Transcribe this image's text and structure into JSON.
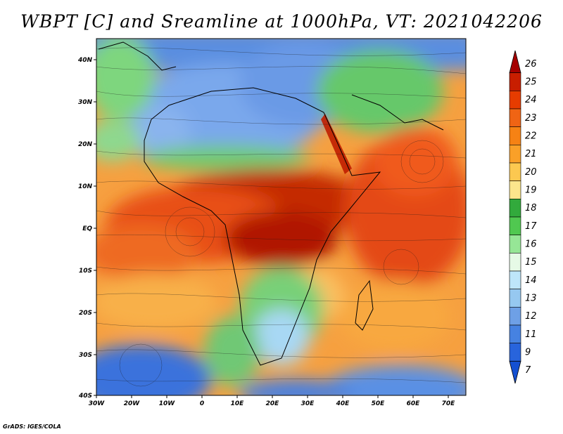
{
  "title": "WBPT [C] and Sreamline at 1000hPa, VT: 2021042206",
  "credit": "GrADS: IGES/COLA",
  "map": {
    "lon_ticks": [
      "30W",
      "20W",
      "10W",
      "0",
      "10E",
      "20E",
      "30E",
      "40E",
      "50E",
      "60E",
      "70E"
    ],
    "lat_ticks": [
      "40N",
      "30N",
      "20N",
      "10N",
      "EQ",
      "10S",
      "20S",
      "30S",
      "40S"
    ]
  },
  "colorbar": {
    "labels": [
      "26",
      "25",
      "24",
      "23",
      "22",
      "21",
      "20",
      "19",
      "18",
      "17",
      "16",
      "15",
      "14",
      "13",
      "12",
      "11",
      "9",
      "7"
    ],
    "colors": [
      "#a50000",
      "#c81e00",
      "#e63c00",
      "#f06414",
      "#f68214",
      "#faa028",
      "#fcc850",
      "#fce68c",
      "#32aa3c",
      "#50c850",
      "#96e696",
      "#e6fae6",
      "#bee6fa",
      "#96c8f0",
      "#6ea0e6",
      "#4682e1",
      "#2864dc",
      "#1450d2"
    ]
  }
}
